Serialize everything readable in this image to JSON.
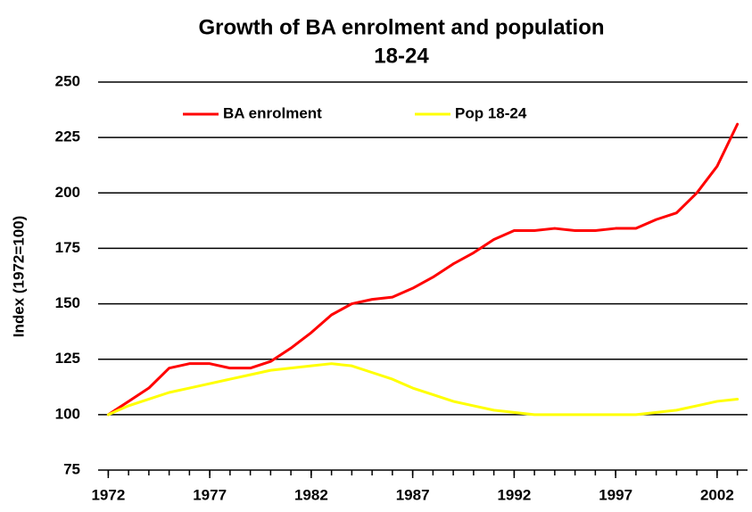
{
  "chart_data": {
    "type": "line",
    "title": [
      "Growth of BA enrolment and population",
      "18-24"
    ],
    "ylabel": "Index (1972=100)",
    "x": [
      1972,
      1973,
      1974,
      1975,
      1976,
      1977,
      1978,
      1979,
      1980,
      1981,
      1982,
      1983,
      1984,
      1985,
      1986,
      1987,
      1988,
      1989,
      1990,
      1991,
      1992,
      1993,
      1994,
      1995,
      1996,
      1997,
      1998,
      1999,
      2000,
      2001,
      2002,
      2003
    ],
    "series": [
      {
        "name": "BA enrolment",
        "color": "#ff0000",
        "values": [
          100,
          106,
          112,
          121,
          123,
          123,
          121,
          121,
          124,
          130,
          137,
          145,
          150,
          152,
          153,
          157,
          162,
          168,
          173,
          179,
          183,
          183,
          184,
          183,
          183,
          184,
          184,
          188,
          191,
          200,
          212,
          231
        ]
      },
      {
        "name": "Pop 18-24",
        "color": "#ffff00",
        "values": [
          100,
          104,
          107,
          110,
          112,
          114,
          116,
          118,
          120,
          121,
          122,
          123,
          122,
          119,
          116,
          112,
          109,
          106,
          104,
          102,
          101,
          100,
          100,
          100,
          100,
          100,
          100,
          101,
          102,
          104,
          106,
          107
        ]
      }
    ],
    "xlim": [
      1971.5,
      2003.5
    ],
    "xticks": [
      1972,
      1977,
      1982,
      1987,
      1992,
      1997,
      2002
    ],
    "ylim": [
      75,
      250
    ],
    "yticks": [
      75,
      100,
      125,
      150,
      175,
      200,
      225,
      250
    ],
    "grid": true,
    "legend": "top"
  }
}
